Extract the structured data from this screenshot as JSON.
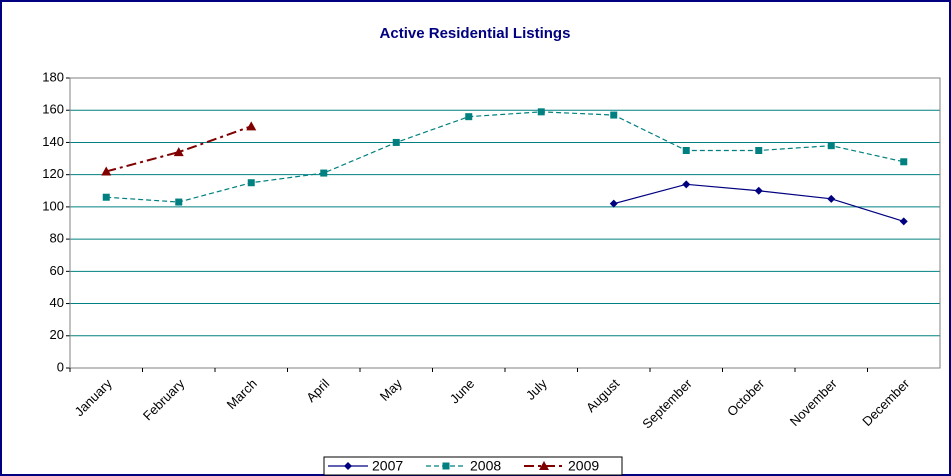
{
  "chart_data": {
    "type": "line",
    "title": "Active Residential Listings",
    "categories": [
      "January",
      "February",
      "March",
      "April",
      "May",
      "June",
      "July",
      "August",
      "September",
      "October",
      "November",
      "December"
    ],
    "series": [
      {
        "name": "2007",
        "color": "#000080",
        "dash": "solid",
        "marker": "diamond",
        "values": [
          null,
          null,
          null,
          null,
          null,
          null,
          null,
          102,
          114,
          110,
          105,
          91
        ]
      },
      {
        "name": "2008",
        "color": "#008080",
        "dash": "dashed",
        "marker": "square",
        "values": [
          106,
          103,
          115,
          121,
          140,
          156,
          159,
          157,
          135,
          135,
          138,
          128
        ]
      },
      {
        "name": "2009",
        "color": "#800000",
        "dash": "dashdot",
        "marker": "triangle",
        "values": [
          122,
          134,
          150,
          null,
          null,
          null,
          null,
          null,
          null,
          null,
          null,
          null
        ]
      }
    ],
    "ylim": [
      0,
      180
    ],
    "yticks": [
      0,
      20,
      40,
      60,
      80,
      100,
      120,
      140,
      160,
      180
    ],
    "grid": true,
    "legend": "bottom"
  }
}
